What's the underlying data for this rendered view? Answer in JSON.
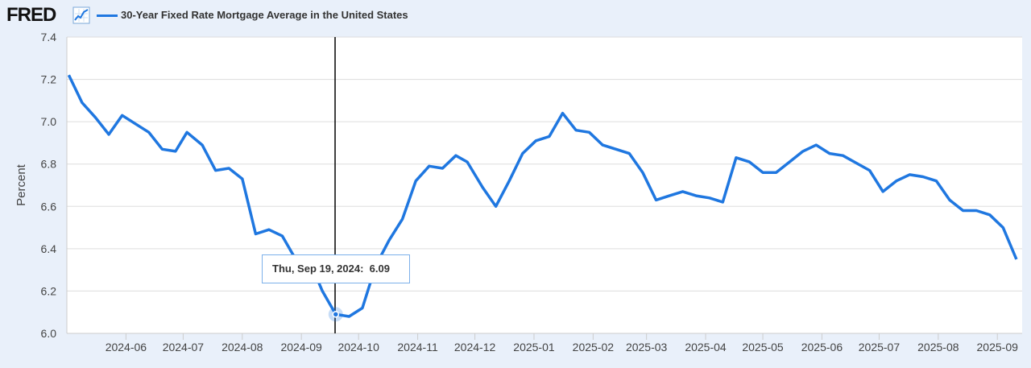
{
  "header": {
    "logo_text": "FRED",
    "logo_icon": "line-chart-icon",
    "series_title": "30-Year Fixed Rate Mortgage Average in the United States"
  },
  "tooltip": {
    "date": "Thu, Sep 19, 2024:",
    "value": "6.09"
  },
  "colors": {
    "line": "#1f77e0",
    "background": "#e9f0fa",
    "plot": "#ffffff",
    "grid": "#dddddd"
  },
  "chart_data": {
    "type": "line",
    "title": "",
    "xlabel": "",
    "ylabel": "Percent",
    "ylim": [
      6.0,
      7.4
    ],
    "yticks": [
      "6.0",
      "6.2",
      "6.4",
      "6.6",
      "6.8",
      "7.0",
      "7.2",
      "7.4"
    ],
    "xticks": [
      "2024-06",
      "2024-07",
      "2024-08",
      "2024-09",
      "2024-10",
      "2024-11",
      "2024-12",
      "2025-01",
      "2025-02",
      "2025-03",
      "2025-04",
      "2025-05",
      "2025-06",
      "2025-07",
      "2025-08",
      "2025-09"
    ],
    "grid": true,
    "series": [
      {
        "name": "30-Year Fixed Rate Mortgage Average in the United States",
        "x": [
          "2024-05-02",
          "2024-05-09",
          "2024-05-16",
          "2024-05-23",
          "2024-05-30",
          "2024-06-06",
          "2024-06-13",
          "2024-06-20",
          "2024-06-27",
          "2024-07-03",
          "2024-07-11",
          "2024-07-18",
          "2024-07-25",
          "2024-08-01",
          "2024-08-08",
          "2024-08-15",
          "2024-08-22",
          "2024-08-29",
          "2024-09-05",
          "2024-09-12",
          "2024-09-19",
          "2024-09-26",
          "2024-10-03",
          "2024-10-10",
          "2024-10-17",
          "2024-10-24",
          "2024-10-31",
          "2024-11-07",
          "2024-11-14",
          "2024-11-21",
          "2024-11-27",
          "2024-12-05",
          "2024-12-12",
          "2024-12-19",
          "2024-12-26",
          "2025-01-02",
          "2025-01-09",
          "2025-01-16",
          "2025-01-23",
          "2025-01-30",
          "2025-02-06",
          "2025-02-13",
          "2025-02-20",
          "2025-02-27",
          "2025-03-06",
          "2025-03-13",
          "2025-03-20",
          "2025-03-27",
          "2025-04-03",
          "2025-04-10",
          "2025-04-17",
          "2025-04-24",
          "2025-05-01",
          "2025-05-08",
          "2025-05-15",
          "2025-05-22",
          "2025-05-29",
          "2025-06-05",
          "2025-06-12",
          "2025-06-18",
          "2025-06-26",
          "2025-07-03",
          "2025-07-10",
          "2025-07-17",
          "2025-07-24",
          "2025-07-31",
          "2025-08-07",
          "2025-08-14",
          "2025-08-21",
          "2025-08-28",
          "2025-09-04",
          "2025-09-11"
        ],
        "values": [
          7.22,
          7.09,
          7.02,
          6.94,
          7.03,
          6.99,
          6.95,
          6.87,
          6.86,
          6.95,
          6.89,
          6.77,
          6.78,
          6.73,
          6.47,
          6.49,
          6.46,
          6.35,
          6.35,
          6.2,
          6.09,
          6.08,
          6.12,
          6.32,
          6.44,
          6.54,
          6.72,
          6.79,
          6.78,
          6.84,
          6.81,
          6.69,
          6.6,
          6.72,
          6.85,
          6.91,
          6.93,
          7.04,
          6.96,
          6.95,
          6.89,
          6.87,
          6.85,
          6.76,
          6.63,
          6.65,
          6.67,
          6.65,
          6.64,
          6.62,
          6.83,
          6.81,
          6.76,
          6.76,
          6.81,
          6.86,
          6.89,
          6.85,
          6.84,
          6.81,
          6.77,
          6.67,
          6.72,
          6.75,
          6.74,
          6.72,
          6.63,
          6.58,
          6.58,
          6.56,
          6.5,
          6.35
        ]
      }
    ]
  }
}
